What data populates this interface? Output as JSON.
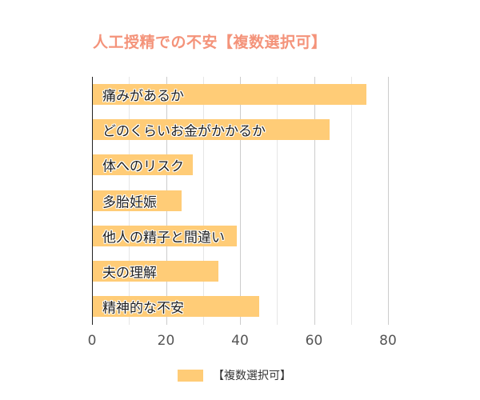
{
  "chart_data": {
    "type": "bar",
    "orientation": "horizontal",
    "title": "人工授精での不安【複数選択可】",
    "categories": [
      "痛みがあるか",
      "どのくらいお金がかかるか",
      "体へのリスク",
      "多胎妊娠",
      "他人の精子と間違い",
      "夫の理解",
      "精神的な不安"
    ],
    "series": [
      {
        "name": "【複数選択可】",
        "color": "#ffcc77",
        "values": [
          74,
          64,
          27,
          24,
          39,
          34,
          45
        ]
      }
    ],
    "xlabel": "",
    "ylabel": "",
    "xlim": [
      0,
      80
    ],
    "x_ticks": [
      "0",
      "20",
      "40",
      "60",
      "80"
    ],
    "grid": true,
    "legend_position": "bottom"
  },
  "colors": {
    "title": "#f4937a",
    "bar": "#ffcc77"
  }
}
